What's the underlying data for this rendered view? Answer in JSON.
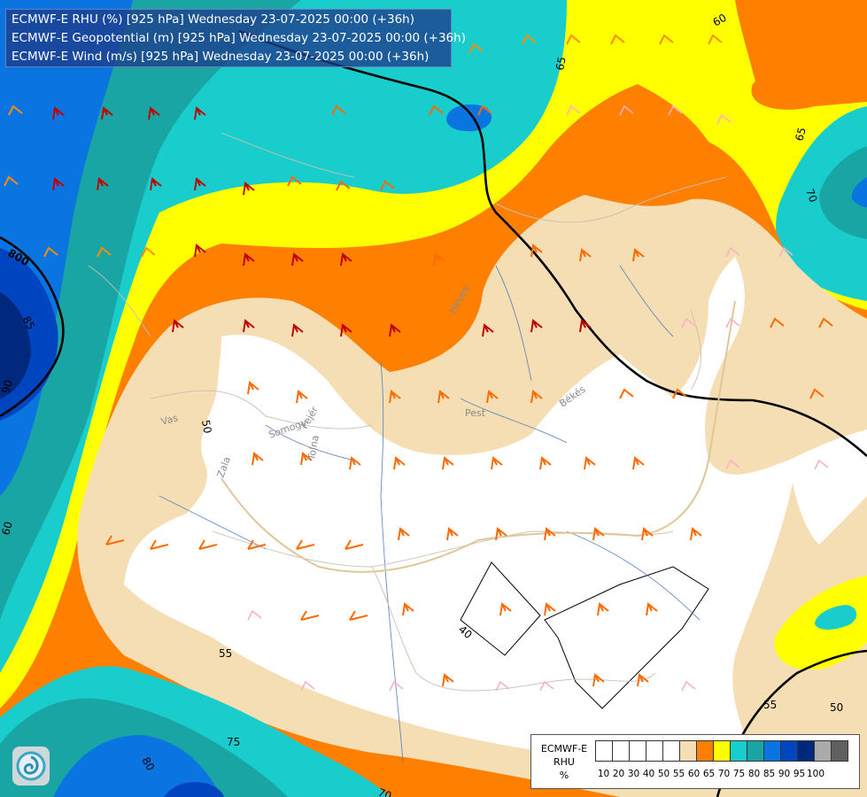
{
  "header": {
    "line1": "ECMWF-E RHU (%) [925 hPa] Wednesday 23-07-2025 00:00 (+36h)",
    "line2": "ECMWF-E Geopotential (m) [925 hPa] Wednesday 23-07-2025 00:00 (+36h)",
    "line3": "ECMWF-E Wind (m/s) [925 hPa] Wednesday 23-07-2025 00:00 (+36h)"
  },
  "legend": {
    "title_line1": "ECMWF-E",
    "title_line2": "RHU",
    "unit": "%",
    "ticks": [
      "10",
      "20",
      "30",
      "40",
      "50",
      "55",
      "60",
      "65",
      "70",
      "75",
      "80",
      "85",
      "90",
      "95",
      "100"
    ],
    "colors": [
      "#ffffff",
      "#ffffff",
      "#ffffff",
      "#ffffff",
      "#ffffff",
      "#f5deb3",
      "#ff8000",
      "#ffff00",
      "#1acdcd",
      "#1aa5a5",
      "#0a75e0",
      "#0045c0",
      "#00287d",
      "#aaaaaa",
      "#606060"
    ]
  },
  "map": {
    "contour_labels": {
      "rhu_65_top": "65",
      "rhu_60_top": "60",
      "rhu_65_right": "65",
      "rhu_70_right": "70",
      "rhu_85_left": "85",
      "rhu_90_left": "90",
      "rhu_60_left": "60",
      "rhu_50_center": "50",
      "rhu_40_center": "40",
      "rhu_55_bottom": "55",
      "rhu_75_bottom": "75",
      "rhu_80_bottom": "80",
      "rhu_70_bottom": "70",
      "rhu_55_right": "55",
      "rhu_50_right": "50",
      "geopotential_800": "800"
    },
    "region_labels": {
      "vas": "Vas",
      "zala": "Zala",
      "somogy": "Somogy",
      "fejer": "Fejér",
      "tolna": "Tolna",
      "pest": "Pest",
      "bekes": "Békés",
      "heves": "Heves"
    },
    "colors": {
      "rhu_55": "#f5deb3",
      "rhu_60": "#ff8000",
      "rhu_65": "#ffff00",
      "rhu_70": "#1acdcd",
      "rhu_75": "#1aa5a5",
      "rhu_80": "#0a75e0",
      "rhu_85": "#0045c0",
      "rhu_90": "#00287d"
    }
  }
}
